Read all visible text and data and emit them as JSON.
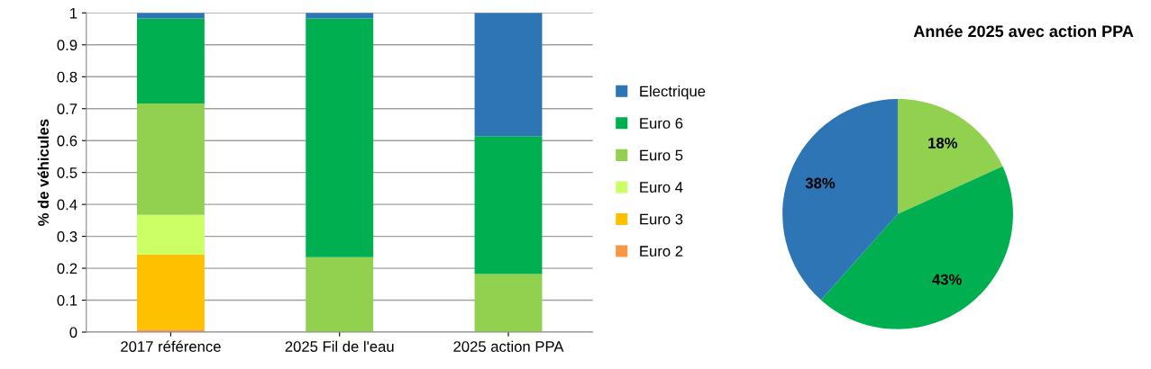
{
  "chart_data": [
    {
      "type": "bar",
      "stacked": true,
      "ylabel": "% de véhicules",
      "categories": [
        "2017 référence",
        "2025 Fil de l'eau",
        "2025 action PPA"
      ],
      "series": [
        {
          "name": "Euro 2",
          "color": "#f79646",
          "values": [
            0.008,
            0,
            0
          ]
        },
        {
          "name": "Euro 3",
          "color": "#ffc000",
          "values": [
            0.235,
            0,
            0
          ]
        },
        {
          "name": "Euro 4",
          "color": "#ccff66",
          "values": [
            0.124,
            0,
            0
          ]
        },
        {
          "name": "Euro 5",
          "color": "#92d050",
          "values": [
            0.349,
            0.235,
            0.182
          ]
        },
        {
          "name": "Euro 6",
          "color": "#00b050",
          "values": [
            0.267,
            0.748,
            0.432
          ]
        },
        {
          "name": "Electrique",
          "color": "#2e75b6",
          "values": [
            0.017,
            0.017,
            0.386
          ]
        }
      ],
      "ylim": [
        0,
        1
      ],
      "yticks": [
        0,
        {
          "value": 0.1,
          "label": "0.1"
        },
        {
          "value": 0.2,
          "label": "0.2"
        },
        {
          "value": 0.3,
          "label": "0.3"
        },
        {
          "value": 0.4,
          "label": "0.4"
        },
        {
          "value": 0.5,
          "label": "0.5"
        },
        {
          "value": 0.6,
          "label": "0.6"
        },
        {
          "value": 0.7,
          "label": "0.7"
        },
        {
          "value": 0.8,
          "label": "0.8"
        },
        {
          "value": 0.9,
          "label": "0.9"
        },
        1
      ],
      "grid": "y",
      "legend": "right"
    },
    {
      "type": "pie",
      "title": "Année 2025 avec action PPA",
      "categories": [
        null,
        null,
        null
      ],
      "values": [
        18,
        43,
        38
      ],
      "colors": [
        "#92d050",
        "#00b050",
        "#2e75b6"
      ],
      "value_labels": [
        "18%",
        "43%",
        "38%"
      ]
    }
  ]
}
